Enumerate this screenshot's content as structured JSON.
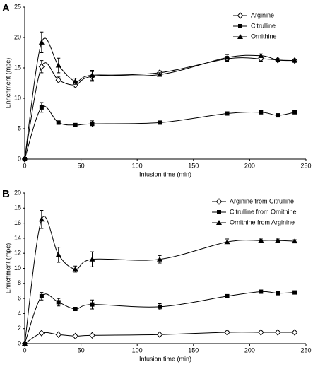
{
  "chart_data": [
    {
      "type": "line",
      "panel_label": "A",
      "ylabel": "Enrichment (mpe)",
      "xlabel": "Infusion time (min)",
      "x": [
        0,
        15,
        30,
        45,
        60,
        120,
        180,
        210,
        225,
        240
      ],
      "xlim": [
        0,
        250
      ],
      "xticks": [
        0,
        50,
        100,
        150,
        200,
        250
      ],
      "ylim": [
        0,
        25
      ],
      "yticks": [
        0,
        5,
        10,
        15,
        20,
        25
      ],
      "series": [
        {
          "name": "Arginine",
          "color": "#000000",
          "marker": "diamond",
          "values": [
            0,
            15.2,
            13.0,
            12.2,
            13.6,
            14.2,
            16.5,
            16.5,
            16.3,
            16.2
          ],
          "errors": [
            null,
            1.0,
            0.5,
            0.5,
            0.8,
            0.3,
            0.4,
            0.4,
            0.2,
            0.2
          ]
        },
        {
          "name": "Citrulline",
          "color": "#000000",
          "marker": "square",
          "values": [
            0,
            8.5,
            6.0,
            5.6,
            5.8,
            6.0,
            7.5,
            7.7,
            7.2,
            7.7
          ],
          "errors": [
            null,
            0.8,
            0.3,
            0.2,
            0.5,
            0.2,
            0.2,
            0.2,
            0.2,
            0.2
          ]
        },
        {
          "name": "Ornithine",
          "color": "#000000",
          "marker": "triangle",
          "values": [
            0,
            19.2,
            15.4,
            12.8,
            13.8,
            13.9,
            16.7,
            17.0,
            16.3,
            16.2
          ],
          "errors": [
            null,
            1.7,
            1.2,
            0.5,
            0.8,
            0.3,
            0.5,
            0.3,
            0.2,
            0.2
          ]
        }
      ]
    },
    {
      "type": "line",
      "panel_label": "B",
      "ylabel": "Enrichment (mpe)",
      "xlabel": "Infusion time (min)",
      "x": [
        0,
        15,
        30,
        45,
        60,
        120,
        180,
        210,
        225,
        240
      ],
      "xlim": [
        0,
        250
      ],
      "xticks": [
        0,
        50,
        100,
        150,
        200,
        250
      ],
      "ylim": [
        0,
        20
      ],
      "yticks": [
        0,
        2,
        4,
        6,
        8,
        10,
        12,
        14,
        16,
        18,
        20
      ],
      "series": [
        {
          "name": "Arginine from Citrulline",
          "color": "#000000",
          "marker": "diamond",
          "values": [
            0,
            1.4,
            1.2,
            1.0,
            1.1,
            1.2,
            1.5,
            1.5,
            1.5,
            1.5
          ],
          "errors": [
            null,
            0.1,
            0.1,
            0.1,
            0.1,
            0.1,
            0.1,
            0.1,
            0.1,
            0.1
          ]
        },
        {
          "name": "Citrulline from Ornithine",
          "color": "#000000",
          "marker": "square",
          "values": [
            0,
            6.3,
            5.5,
            4.6,
            5.2,
            4.9,
            6.3,
            6.9,
            6.7,
            6.8
          ],
          "errors": [
            null,
            0.5,
            0.5,
            0.2,
            0.6,
            0.4,
            0.2,
            0.2,
            0.1,
            0.1
          ]
        },
        {
          "name": "Ornithine from Arginine",
          "color": "#000000",
          "marker": "triangle",
          "values": [
            0,
            16.5,
            11.8,
            9.9,
            11.2,
            11.2,
            13.5,
            13.7,
            13.7,
            13.6
          ],
          "errors": [
            null,
            1.2,
            1.0,
            0.4,
            1.0,
            0.5,
            0.4,
            0.2,
            0.2,
            0.2
          ]
        }
      ]
    }
  ]
}
